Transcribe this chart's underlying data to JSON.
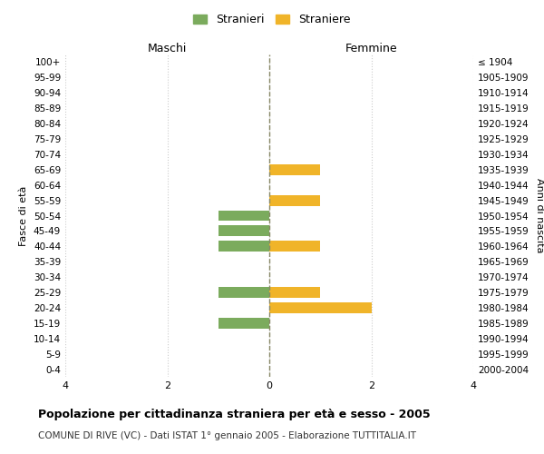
{
  "age_groups": [
    "100+",
    "95-99",
    "90-94",
    "85-89",
    "80-84",
    "75-79",
    "70-74",
    "65-69",
    "60-64",
    "55-59",
    "50-54",
    "45-49",
    "40-44",
    "35-39",
    "30-34",
    "25-29",
    "20-24",
    "15-19",
    "10-14",
    "5-9",
    "0-4"
  ],
  "birth_years": [
    "≤ 1904",
    "1905-1909",
    "1910-1914",
    "1915-1919",
    "1920-1924",
    "1925-1929",
    "1930-1934",
    "1935-1939",
    "1940-1944",
    "1945-1949",
    "1950-1954",
    "1955-1959",
    "1960-1964",
    "1965-1969",
    "1970-1974",
    "1975-1979",
    "1980-1984",
    "1985-1989",
    "1990-1994",
    "1995-1999",
    "2000-2004"
  ],
  "maschi": [
    0,
    0,
    0,
    0,
    0,
    0,
    0,
    0,
    0,
    0,
    1,
    1,
    1,
    0,
    0,
    1,
    0,
    1,
    0,
    0,
    0
  ],
  "femmine": [
    0,
    0,
    0,
    0,
    0,
    0,
    0,
    1,
    0,
    1,
    0,
    0,
    1,
    0,
    0,
    1,
    2,
    0,
    0,
    0,
    0
  ],
  "male_color": "#7bab5d",
  "female_color": "#f0b429",
  "axis_line_color": "#888866",
  "grid_color": "#cccccc",
  "title": "Popolazione per cittadinanza straniera per età e sesso - 2005",
  "subtitle": "COMUNE DI RIVE (VC) - Dati ISTAT 1° gennaio 2005 - Elaborazione TUTTITALIA.IT",
  "xlabel_left": "Maschi",
  "xlabel_right": "Femmine",
  "ylabel_left": "Fasce di età",
  "ylabel_right": "Anni di nascita",
  "legend_male": "Stranieri",
  "legend_female": "Straniere",
  "xlim": 4,
  "background_color": "#ffffff",
  "bar_height": 0.7
}
